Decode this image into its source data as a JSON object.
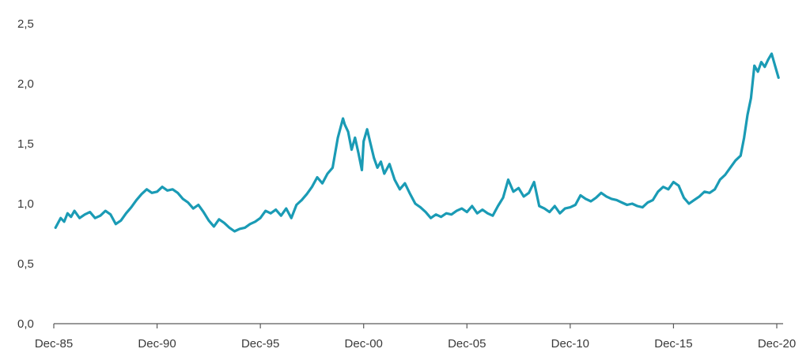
{
  "chart_data": {
    "type": "line",
    "title": "",
    "xlabel": "",
    "ylabel": "",
    "ylim": [
      0,
      2.5
    ],
    "yticks": [
      "0,0",
      "0,5",
      "1,0",
      "1,5",
      "2,0",
      "2,5"
    ],
    "xticks": [
      {
        "x": "1985-12",
        "label": "Dec-85"
      },
      {
        "x": "1990-12",
        "label": "Dec-90"
      },
      {
        "x": "1995-12",
        "label": "Dec-95"
      },
      {
        "x": "2000-12",
        "label": "Dec-00"
      },
      {
        "x": "2005-12",
        "label": "Dec-05"
      },
      {
        "x": "2010-12",
        "label": "Dec-10"
      },
      {
        "x": "2015-12",
        "label": "Dec-15"
      },
      {
        "x": "2020-12",
        "label": "Dec-20"
      }
    ],
    "xlim": [
      "1985-12",
      "2021-03"
    ],
    "grid": false,
    "legend": "none",
    "series": [
      {
        "color": "#1a9bb5",
        "points": [
          [
            "1986-01",
            0.8
          ],
          [
            "1986-04",
            0.88
          ],
          [
            "1986-06",
            0.85
          ],
          [
            "1986-08",
            0.92
          ],
          [
            "1986-10",
            0.89
          ],
          [
            "1986-12",
            0.94
          ],
          [
            "1987-03",
            0.88
          ],
          [
            "1987-06",
            0.91
          ],
          [
            "1987-09",
            0.93
          ],
          [
            "1987-12",
            0.88
          ],
          [
            "1988-03",
            0.9
          ],
          [
            "1988-06",
            0.94
          ],
          [
            "1988-09",
            0.91
          ],
          [
            "1988-12",
            0.83
          ],
          [
            "1989-03",
            0.86
          ],
          [
            "1989-06",
            0.92
          ],
          [
            "1989-09",
            0.97
          ],
          [
            "1989-12",
            1.03
          ],
          [
            "1990-03",
            1.08
          ],
          [
            "1990-06",
            1.12
          ],
          [
            "1990-09",
            1.09
          ],
          [
            "1990-12",
            1.1
          ],
          [
            "1991-03",
            1.14
          ],
          [
            "1991-06",
            1.11
          ],
          [
            "1991-09",
            1.12
          ],
          [
            "1991-12",
            1.09
          ],
          [
            "1992-03",
            1.04
          ],
          [
            "1992-06",
            1.01
          ],
          [
            "1992-09",
            0.96
          ],
          [
            "1992-12",
            0.99
          ],
          [
            "1993-03",
            0.93
          ],
          [
            "1993-06",
            0.86
          ],
          [
            "1993-09",
            0.81
          ],
          [
            "1993-12",
            0.87
          ],
          [
            "1994-03",
            0.84
          ],
          [
            "1994-06",
            0.8
          ],
          [
            "1994-09",
            0.77
          ],
          [
            "1994-12",
            0.79
          ],
          [
            "1995-03",
            0.8
          ],
          [
            "1995-06",
            0.83
          ],
          [
            "1995-09",
            0.85
          ],
          [
            "1995-12",
            0.88
          ],
          [
            "1996-03",
            0.94
          ],
          [
            "1996-06",
            0.92
          ],
          [
            "1996-09",
            0.95
          ],
          [
            "1996-12",
            0.9
          ],
          [
            "1997-03",
            0.96
          ],
          [
            "1997-06",
            0.88
          ],
          [
            "1997-09",
            0.99
          ],
          [
            "1997-12",
            1.03
          ],
          [
            "1998-03",
            1.08
          ],
          [
            "1998-06",
            1.14
          ],
          [
            "1998-09",
            1.22
          ],
          [
            "1998-12",
            1.17
          ],
          [
            "1999-03",
            1.25
          ],
          [
            "1999-06",
            1.3
          ],
          [
            "1999-09",
            1.55
          ],
          [
            "1999-12",
            1.71
          ],
          [
            "2000-01",
            1.66
          ],
          [
            "2000-03",
            1.6
          ],
          [
            "2000-05",
            1.45
          ],
          [
            "2000-07",
            1.55
          ],
          [
            "2000-09",
            1.42
          ],
          [
            "2000-11",
            1.28
          ],
          [
            "2000-12",
            1.52
          ],
          [
            "2001-02",
            1.62
          ],
          [
            "2001-04",
            1.5
          ],
          [
            "2001-06",
            1.38
          ],
          [
            "2001-08",
            1.3
          ],
          [
            "2001-10",
            1.35
          ],
          [
            "2001-12",
            1.25
          ],
          [
            "2002-03",
            1.33
          ],
          [
            "2002-06",
            1.2
          ],
          [
            "2002-09",
            1.12
          ],
          [
            "2002-12",
            1.17
          ],
          [
            "2003-03",
            1.08
          ],
          [
            "2003-06",
            1.0
          ],
          [
            "2003-09",
            0.97
          ],
          [
            "2003-12",
            0.93
          ],
          [
            "2004-03",
            0.88
          ],
          [
            "2004-06",
            0.91
          ],
          [
            "2004-09",
            0.89
          ],
          [
            "2004-12",
            0.92
          ],
          [
            "2005-03",
            0.91
          ],
          [
            "2005-06",
            0.94
          ],
          [
            "2005-09",
            0.96
          ],
          [
            "2005-12",
            0.93
          ],
          [
            "2006-03",
            0.98
          ],
          [
            "2006-06",
            0.92
          ],
          [
            "2006-09",
            0.95
          ],
          [
            "2006-12",
            0.92
          ],
          [
            "2007-03",
            0.9
          ],
          [
            "2007-06",
            0.98
          ],
          [
            "2007-09",
            1.05
          ],
          [
            "2007-12",
            1.2
          ],
          [
            "2008-03",
            1.1
          ],
          [
            "2008-06",
            1.13
          ],
          [
            "2008-09",
            1.06
          ],
          [
            "2008-12",
            1.09
          ],
          [
            "2009-03",
            1.18
          ],
          [
            "2009-06",
            0.98
          ],
          [
            "2009-09",
            0.96
          ],
          [
            "2009-12",
            0.93
          ],
          [
            "2010-03",
            0.98
          ],
          [
            "2010-06",
            0.92
          ],
          [
            "2010-09",
            0.96
          ],
          [
            "2010-12",
            0.97
          ],
          [
            "2011-03",
            0.99
          ],
          [
            "2011-06",
            1.07
          ],
          [
            "2011-09",
            1.04
          ],
          [
            "2011-12",
            1.02
          ],
          [
            "2012-03",
            1.05
          ],
          [
            "2012-06",
            1.09
          ],
          [
            "2012-09",
            1.06
          ],
          [
            "2012-12",
            1.04
          ],
          [
            "2013-03",
            1.03
          ],
          [
            "2013-06",
            1.01
          ],
          [
            "2013-09",
            0.99
          ],
          [
            "2013-12",
            1.0
          ],
          [
            "2014-03",
            0.98
          ],
          [
            "2014-06",
            0.97
          ],
          [
            "2014-09",
            1.01
          ],
          [
            "2014-12",
            1.03
          ],
          [
            "2015-03",
            1.1
          ],
          [
            "2015-06",
            1.14
          ],
          [
            "2015-09",
            1.12
          ],
          [
            "2015-12",
            1.18
          ],
          [
            "2016-03",
            1.15
          ],
          [
            "2016-06",
            1.05
          ],
          [
            "2016-09",
            1.0
          ],
          [
            "2016-12",
            1.03
          ],
          [
            "2017-03",
            1.06
          ],
          [
            "2017-06",
            1.1
          ],
          [
            "2017-09",
            1.09
          ],
          [
            "2017-12",
            1.12
          ],
          [
            "2018-03",
            1.2
          ],
          [
            "2018-06",
            1.24
          ],
          [
            "2018-09",
            1.3
          ],
          [
            "2018-12",
            1.36
          ],
          [
            "2019-03",
            1.4
          ],
          [
            "2019-05",
            1.55
          ],
          [
            "2019-07",
            1.74
          ],
          [
            "2019-09",
            1.88
          ],
          [
            "2019-11",
            2.15
          ],
          [
            "2020-01",
            2.1
          ],
          [
            "2020-03",
            2.18
          ],
          [
            "2020-05",
            2.14
          ],
          [
            "2020-07",
            2.2
          ],
          [
            "2020-09",
            2.25
          ],
          [
            "2020-11",
            2.15
          ],
          [
            "2021-01",
            2.05
          ]
        ]
      }
    ]
  }
}
